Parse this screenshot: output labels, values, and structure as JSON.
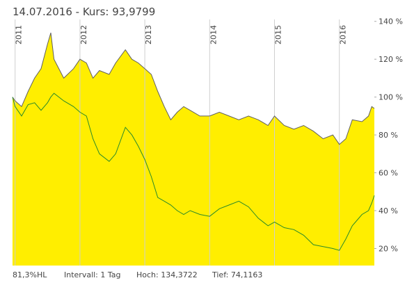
{
  "chart_data": {
    "type": "line",
    "title": "14.07.2016  - Kurs: 93,9799",
    "x": [
      2010.96,
      2011.0,
      2011.1,
      2011.2,
      2011.3,
      2011.4,
      2011.5,
      2011.55,
      2011.6,
      2011.75,
      2011.9,
      2012.0,
      2012.1,
      2012.2,
      2012.3,
      2012.45,
      2012.55,
      2012.7,
      2012.8,
      2012.9,
      2013.0,
      2013.1,
      2013.2,
      2013.3,
      2013.4,
      2013.5,
      2013.6,
      2013.7,
      2013.85,
      2014.0,
      2014.15,
      2014.3,
      2014.45,
      2014.6,
      2014.75,
      2014.9,
      2015.0,
      2015.15,
      2015.3,
      2015.45,
      2015.6,
      2015.75,
      2015.9,
      2016.0,
      2016.1,
      2016.2,
      2016.35,
      2016.45,
      2016.5,
      2016.54
    ],
    "series": [
      {
        "color": "#606060",
        "fill": "#ffee00",
        "values": [
          100,
          98,
          95,
          103,
          110,
          115,
          128,
          134,
          120,
          110,
          115,
          120,
          118,
          110,
          114,
          112,
          118,
          125,
          120,
          118,
          115,
          112,
          103,
          95,
          88,
          92,
          95,
          93,
          90,
          90,
          92,
          90,
          88,
          90,
          88,
          85,
          90,
          85,
          83,
          85,
          82,
          78,
          80,
          75,
          78,
          88,
          87,
          90,
          95,
          94
        ]
      },
      {
        "color": "#2a8a2a",
        "values": [
          100,
          95,
          90,
          96,
          97,
          93,
          97,
          100,
          102,
          98,
          95,
          92,
          90,
          78,
          70,
          66,
          70,
          84,
          80,
          74,
          67,
          58,
          47,
          45,
          43,
          40,
          38,
          40,
          38,
          37,
          41,
          43,
          45,
          42,
          36,
          32,
          34,
          31,
          30,
          27,
          22,
          21,
          20,
          19,
          25,
          32,
          38,
          40,
          44,
          48
        ]
      }
    ],
    "xlim": [
      2010.96,
      2016.54
    ],
    "xticks": [
      2011,
      2012,
      2013,
      2014,
      2015,
      2016
    ],
    "ylim": [
      11,
      141
    ],
    "yticks": [
      {
        "value": 20,
        "label": "20 %"
      },
      {
        "value": 40,
        "label": "40 %"
      },
      {
        "value": 60,
        "label": "60 %"
      },
      {
        "value": 80,
        "label": "80 %"
      },
      {
        "value": 100,
        "label": "100 %"
      },
      {
        "value": 120,
        "label": "120 %"
      },
      {
        "value": 140,
        "label": "140 %"
      }
    ],
    "grid": true,
    "footer": [
      "81,3%HL",
      "Intervall: 1 Tag",
      "Hoch: 134,3722",
      "Tief: 74,1163"
    ]
  }
}
